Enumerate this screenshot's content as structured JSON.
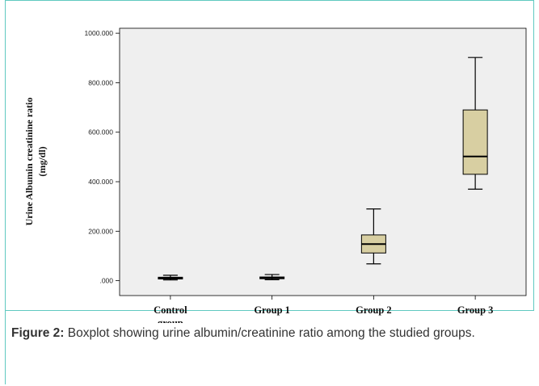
{
  "chart_data": {
    "type": "boxplot",
    "ylabel_line1": "Urine Albumin creatinine ratio",
    "ylabel_line2": "(mg/dl)",
    "ylim": [
      -60,
      1020
    ],
    "yticks": [
      {
        "value": 0,
        "label": ".000"
      },
      {
        "value": 200,
        "label": "200.000"
      },
      {
        "value": 400,
        "label": "400.000"
      },
      {
        "value": 600,
        "label": "600.000"
      },
      {
        "value": 800,
        "label": "800.000"
      },
      {
        "value": 1000,
        "label": "1000.000"
      }
    ],
    "categories": [
      {
        "line1": "Control",
        "line2": "group"
      },
      {
        "line1": "Group 1",
        "line2": ""
      },
      {
        "line1": "Group 2",
        "line2": ""
      },
      {
        "line1": "Group 3",
        "line2": ""
      }
    ],
    "boxes": [
      {
        "min": 3,
        "q1": 7,
        "median": 10,
        "q3": 14,
        "max": 22
      },
      {
        "min": 4,
        "q1": 8,
        "median": 11,
        "q3": 15,
        "max": 25
      },
      {
        "min": 68,
        "q1": 112,
        "median": 148,
        "q3": 185,
        "max": 290
      },
      {
        "min": 370,
        "q1": 430,
        "median": 502,
        "q3": 690,
        "max": 902
      }
    ],
    "colors": {
      "box_fill": "#d8cfa2",
      "plot_bg": "#efefef",
      "stroke": "#000000"
    },
    "grid": false
  },
  "caption": {
    "label": "Figure 2:",
    "text": " Boxplot showing urine albumin/creatinine ratio among the studied groups."
  }
}
